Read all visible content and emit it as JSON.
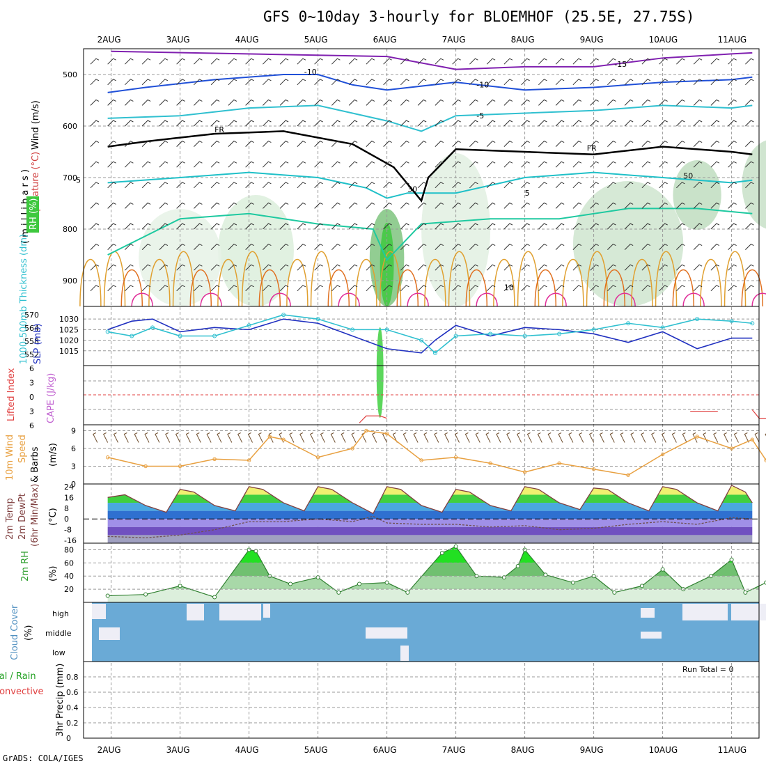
{
  "title": "GFS 0~10day 3-hourly for BLOEMHOF (25.5E, 27.75S)",
  "footer": "GrADS: COLA/IGES",
  "run_total": "Run Total = 0",
  "colors": {
    "grid": "#999999",
    "temp_neg5": "#1fc0c8",
    "temp_pos": "#1ec9a0",
    "temp_warm": "#e0a030",
    "temp_hot": "#e07020",
    "temp_vhot": "#e0309a",
    "minus10": "#2050d8",
    "minus15": "#8020b0",
    "slp": "#2030c0",
    "thickness": "#30c0d0",
    "wind10m": "#e8a040",
    "barb": "#705030",
    "rh_fill": "#9fd39f",
    "cloud": "#6aaad6",
    "cloud_gap": "#eeeef6"
  },
  "chart_data": [
    {
      "type": "contour",
      "panel": "upper-air",
      "ylabel_parts": [
        "Wind (m/s)",
        "Temperature (°C)",
        "RH (%)"
      ],
      "ylabel_units": "( m i l l i b a r s )",
      "dates": [
        "2AUG",
        "3AUG",
        "4AUG",
        "5AUG",
        "6AUG",
        "7AUG",
        "8AUG",
        "9AUG",
        "10AUG",
        "11AUG"
      ],
      "yticks": [
        500,
        600,
        700,
        800,
        900
      ],
      "ylim": [
        450,
        950
      ],
      "contour_labels": [
        "-15",
        "-10",
        "-10",
        "-5",
        "-5",
        "5",
        "10",
        "FR",
        "FR",
        "10",
        "30",
        "30",
        "50",
        "50"
      ],
      "series": [
        {
          "name": "-15",
          "color": "purple",
          "x": [
            1,
            5,
            6,
            7,
            8,
            9,
            10,
            10.3
          ],
          "y": [
            455,
            465,
            490,
            485,
            485,
            468,
            460,
            458
          ]
        },
        {
          "name": "-10",
          "color": "blue",
          "x": [
            0.95,
            1.5,
            2.5,
            3.5,
            4,
            4.5,
            5,
            6,
            7,
            8,
            9,
            10,
            10.3
          ],
          "y": [
            535,
            525,
            510,
            500,
            500,
            520,
            530,
            515,
            530,
            525,
            515,
            510,
            505
          ]
        },
        {
          "name": "-5",
          "color": "cyan",
          "x": [
            0.95,
            2,
            3,
            4,
            4.5,
            5,
            5.5,
            6,
            7,
            8,
            9,
            10,
            10.3
          ],
          "y": [
            585,
            580,
            565,
            560,
            575,
            590,
            610,
            580,
            575,
            570,
            560,
            565,
            560
          ]
        },
        {
          "name": "-5b",
          "color": "teal",
          "x": [
            0.95,
            2,
            3,
            4,
            4.7,
            5,
            5.3,
            6,
            7,
            8,
            9,
            10,
            10.3
          ],
          "y": [
            710,
            700,
            690,
            700,
            720,
            740,
            730,
            730,
            700,
            690,
            700,
            710,
            705
          ]
        },
        {
          "name": "FR",
          "color": "black",
          "x": [
            0.95,
            1.5,
            2.5,
            3.5,
            4.5,
            5.1,
            5.5,
            5.6,
            6,
            7,
            8,
            9,
            10,
            10.3
          ],
          "y": [
            640,
            630,
            615,
            610,
            635,
            680,
            745,
            700,
            645,
            650,
            655,
            640,
            650,
            655
          ]
        }
      ]
    },
    {
      "type": "line",
      "panel": "slp-thickness",
      "ylabel_left": "1000-500mb Thickness (dm)",
      "ylabel_right": "SLP (mb)",
      "left_ticks": [
        552,
        558,
        564,
        570
      ],
      "right_ticks": [
        1015,
        1020,
        1025,
        1030
      ],
      "ylim_slp": [
        1010,
        1034
      ],
      "series": [
        {
          "name": "SLP",
          "x": [
            0.95,
            1.3,
            1.6,
            2,
            2.5,
            3,
            3.5,
            4,
            4.5,
            5,
            5.5,
            5.7,
            6,
            6.5,
            7,
            7.5,
            8,
            8.5,
            9,
            9.5,
            10,
            10.3
          ],
          "y": [
            1025,
            1029,
            1030,
            1024,
            1026,
            1025,
            1030,
            1028,
            1022,
            1016,
            1014,
            1020,
            1027,
            1022,
            1026,
            1025,
            1023,
            1019,
            1024,
            1016,
            1021,
            1021
          ]
        },
        {
          "name": "Thickness",
          "x": [
            0.95,
            1.3,
            1.6,
            2,
            2.5,
            3,
            3.5,
            4,
            4.5,
            5,
            5.5,
            5.7,
            6,
            6.5,
            7,
            7.5,
            8,
            8.5,
            9,
            9.5,
            10,
            10.3
          ],
          "y": [
            1024,
            1022,
            1026,
            1022,
            1022,
            1027,
            1032,
            1030,
            1025,
            1025,
            1020,
            1014,
            1022,
            1023,
            1022,
            1023,
            1025,
            1028,
            1026,
            1030,
            1029,
            1028
          ]
        }
      ]
    },
    {
      "type": "line",
      "panel": "cape-li",
      "ylabel_left": "Lifted Index",
      "ylabel_right": "CAPE (J/kg)",
      "yticks": [
        "6",
        "3",
        "0",
        "3",
        "6"
      ],
      "series": [
        {
          "name": "LI",
          "x": [
            4.6,
            4.7,
            4.9,
            5,
            9.4,
            9.6,
            9.8,
            10.3,
            10.4,
            10.6
          ],
          "y": [
            6,
            4.5,
            4.5,
            5,
            3.5,
            3.5,
            3.5,
            3.2,
            5,
            5
          ]
        }
      ]
    },
    {
      "type": "line",
      "panel": "10m-wind",
      "ylabel": "10m Wind Speed & Barbs (m/s)",
      "yticks": [
        0,
        3,
        6,
        9
      ],
      "ylim": [
        0,
        10
      ],
      "series": [
        {
          "name": "Speed",
          "x": [
            0.95,
            1.5,
            2,
            2.5,
            3,
            3.3,
            3.5,
            4,
            4.5,
            4.7,
            5,
            5.5,
            6,
            6.5,
            7,
            7.5,
            8,
            8.5,
            9,
            9.5,
            10,
            10.3,
            10.5,
            10.8,
            11
          ],
          "y": [
            4.5,
            3,
            3,
            4.2,
            4,
            8,
            7.5,
            4.5,
            6,
            9,
            8.5,
            4,
            4.5,
            3.5,
            2,
            3.5,
            2.5,
            1.5,
            5,
            8,
            6,
            7.5,
            4,
            3,
            2
          ]
        }
      ]
    },
    {
      "type": "area",
      "panel": "2m-temp",
      "ylabel": "2m Temp 2m DewPt (6hr Min/Max) (°C)",
      "yticks": [
        -16,
        -8,
        0,
        8,
        16,
        24
      ],
      "ylim": [
        -18,
        26
      ],
      "series": [
        {
          "name": "Temp",
          "x": [
            0.95,
            1.2,
            1.5,
            1.8,
            2,
            2.2,
            2.5,
            2.8,
            3,
            3.2,
            3.5,
            3.8,
            4,
            4.2,
            4.5,
            4.8,
            5,
            5.2,
            5.5,
            5.8,
            6,
            6.2,
            6.5,
            6.8,
            7,
            7.2,
            7.5,
            7.8,
            8,
            8.2,
            8.5,
            8.8,
            9,
            9.2,
            9.5,
            9.8,
            10,
            10.2,
            10.3
          ],
          "y": [
            16,
            18,
            10,
            5,
            22,
            20,
            10,
            6,
            24,
            22,
            12,
            6,
            24,
            22,
            12,
            4,
            24,
            22,
            10,
            5,
            22,
            20,
            10,
            6,
            24,
            22,
            12,
            7,
            23,
            22,
            12,
            6,
            24,
            22,
            12,
            6,
            25,
            20,
            12
          ]
        },
        {
          "name": "DewPt",
          "x": [
            0.95,
            1.5,
            2,
            2.5,
            3,
            3.5,
            4,
            4.5,
            4.8,
            5,
            5.5,
            6,
            6.5,
            7,
            7.5,
            8,
            8.5,
            9,
            9.5,
            10,
            10.3
          ],
          "y": [
            -13,
            -14,
            -12,
            -8,
            -2,
            -2,
            0,
            -2,
            2,
            -3,
            -4,
            -4,
            -6,
            -5,
            -8,
            -7,
            -4,
            -2,
            -4,
            1,
            0
          ]
        }
      ]
    },
    {
      "type": "area",
      "panel": "2m-rh",
      "ylabel": "2m RH (%)",
      "yticks": [
        20,
        40,
        60,
        80
      ],
      "ylim": [
        0,
        90
      ],
      "series": [
        {
          "name": "RH",
          "x": [
            0.95,
            1.5,
            2,
            2.5,
            3,
            3.1,
            3.3,
            3.6,
            4,
            4.3,
            4.6,
            5,
            5.3,
            5.8,
            6,
            6.3,
            6.7,
            6.9,
            7,
            7.3,
            7.7,
            8,
            8.3,
            8.7,
            9,
            9.3,
            9.7,
            10,
            10.2,
            10.5,
            10.9,
            11
          ],
          "y": [
            10,
            12,
            25,
            8,
            80,
            78,
            40,
            28,
            38,
            15,
            28,
            30,
            15,
            75,
            85,
            40,
            38,
            55,
            80,
            42,
            30,
            40,
            15,
            25,
            50,
            20,
            40,
            65,
            15,
            30,
            45,
            38
          ]
        }
      ]
    },
    {
      "type": "heatmap",
      "panel": "cloud-cover",
      "ylabel": "Cloud Cover (%)",
      "ylabels": [
        "high",
        "middle",
        "low"
      ]
    },
    {
      "type": "bar",
      "panel": "precip",
      "ylabel_left": "Total / Rain / Convective",
      "ylabel": "3hr Precip (mm)",
      "yticks": [
        0,
        0.2,
        0.4,
        0.6,
        0.8
      ],
      "ylim": [
        0,
        1.0
      ],
      "values": []
    }
  ]
}
